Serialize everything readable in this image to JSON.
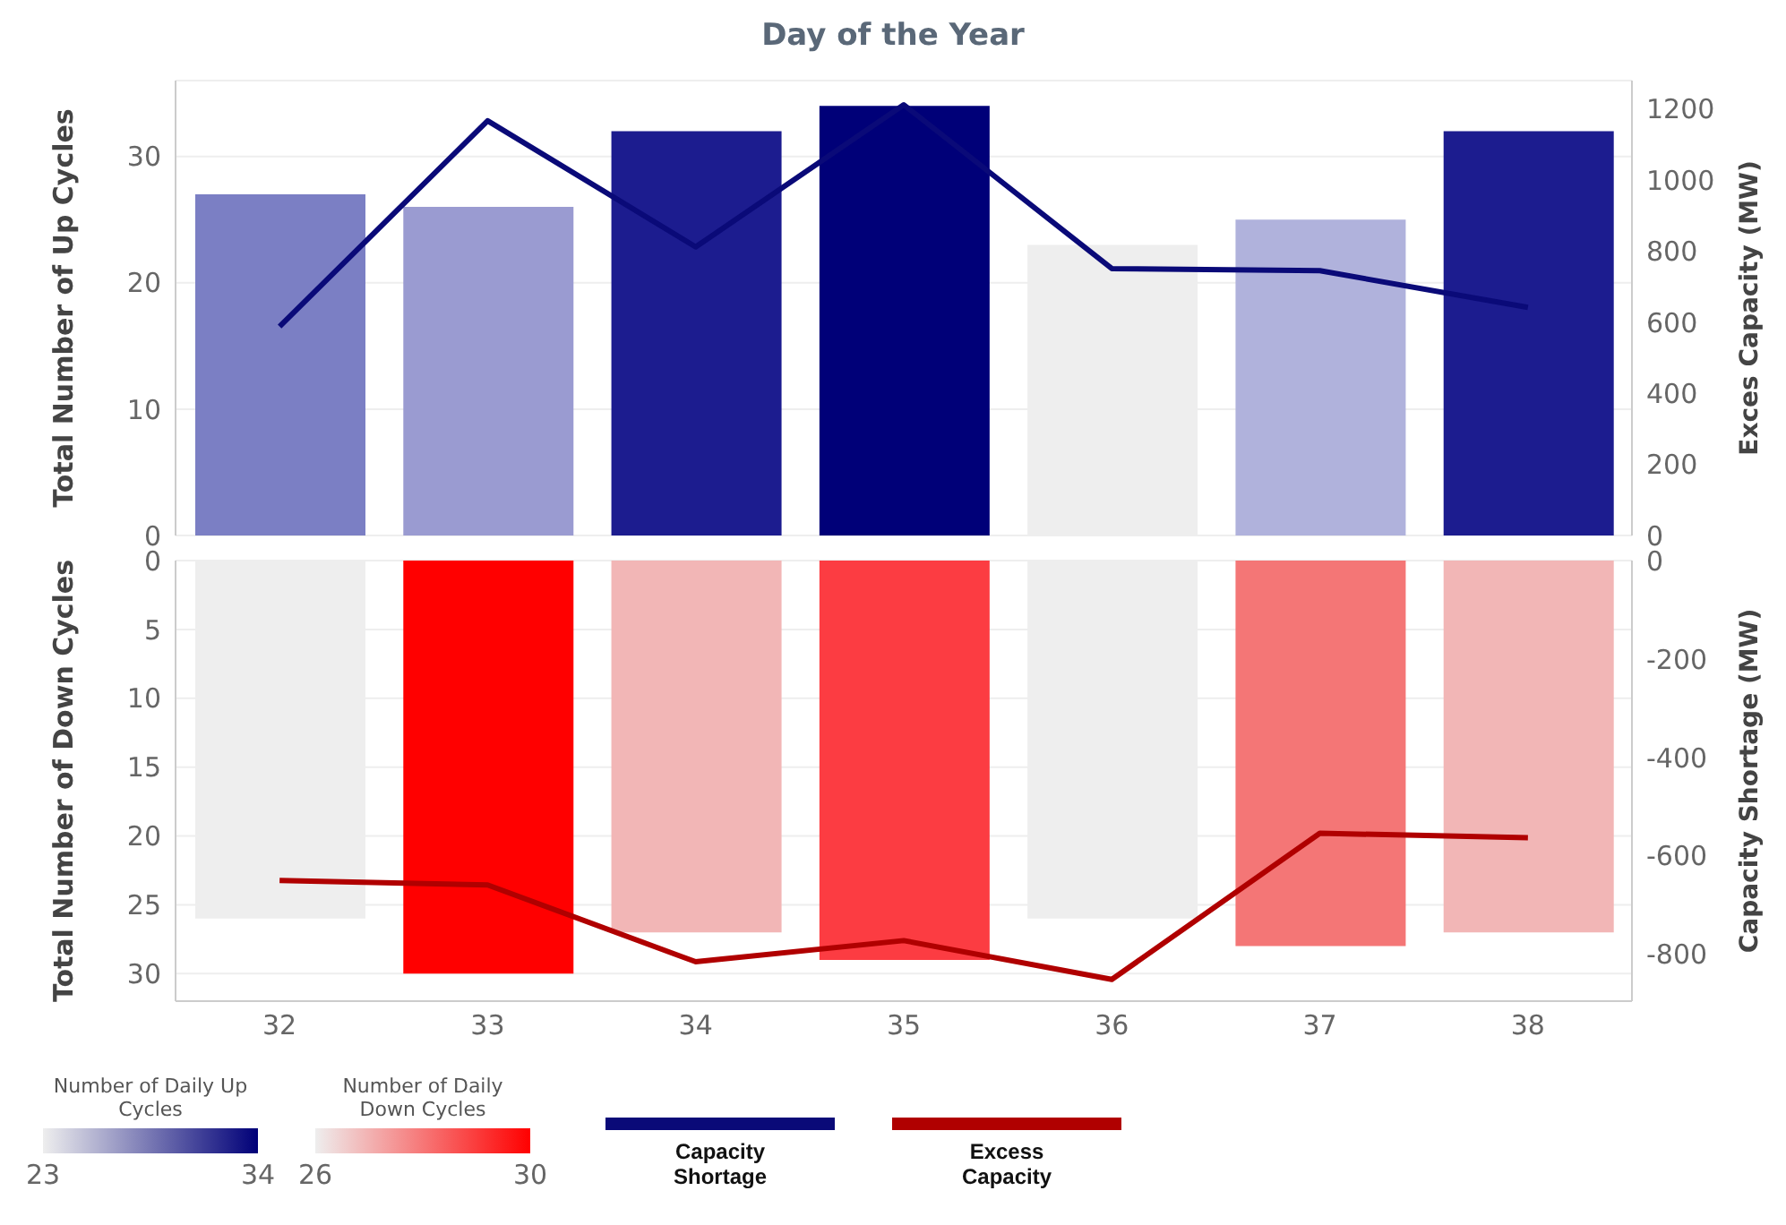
{
  "chart_data": [
    {
      "type": "bar",
      "title": "Day of the Year",
      "ylabel": "Total Number of Up Cycles",
      "y2label": "Exces Capacity (MW)",
      "categories": [
        "32",
        "33",
        "34",
        "35",
        "36",
        "37",
        "38"
      ],
      "tick_labels": "y",
      "grid": "y",
      "legend": "bottom",
      "clabel": "Number of Daily Up Cycles",
      "clim": [
        23,
        34
      ],
      "cticks": [
        23,
        34
      ],
      "ylim": [
        0,
        36
      ],
      "yticks": [
        0,
        10,
        20,
        30
      ],
      "y2lim": [
        0,
        1280
      ],
      "y2ticks": [
        0,
        200,
        400,
        600,
        800,
        1000,
        1200
      ],
      "series": [
        {
          "values": [
            27,
            26,
            32,
            34,
            23,
            25,
            32
          ],
          "colors": [
            "#7b7fc4",
            "#9a9bd1",
            "#1c1c8f",
            "#000078",
            "#eeeeee",
            "#b0b2dc",
            "#1c1c8f"
          ]
        },
        {
          "type": "line",
          "name": "Capacity Shortage",
          "color": "#0a0a78",
          "axis": "y2",
          "values": [
            588,
            1167,
            812,
            1212,
            751,
            745,
            642
          ]
        }
      ]
    },
    {
      "type": "bar",
      "ylabel": "Total Number of Down Cycles",
      "y2label": "Capacity Shortage (MW)",
      "categories": [
        "32",
        "33",
        "34",
        "35",
        "36",
        "37",
        "38"
      ],
      "grid": "y",
      "legend": "bottom",
      "clabel": "Number of Daily Down Cycles",
      "clim": [
        26,
        30
      ],
      "cticks": [
        26,
        30
      ],
      "ylim": [
        32,
        0
      ],
      "yticks": [
        0,
        5,
        10,
        15,
        20,
        25,
        30
      ],
      "y2lim": [
        -895,
        0
      ],
      "y2ticks": [
        -800,
        -600,
        -400,
        -200,
        0
      ],
      "series": [
        {
          "values": [
            26,
            30,
            27,
            29,
            26,
            28,
            27
          ],
          "colors": [
            "#eeeeee",
            "#ff0000",
            "#f2b6b6",
            "#fc3c42",
            "#eeeeee",
            "#f47676",
            "#f2b6b6"
          ]
        },
        {
          "type": "line",
          "name": "Excess Capacity",
          "color": "#b00000",
          "axis": "y2",
          "values": [
            -650,
            -659,
            -815,
            -772,
            -851,
            -554,
            -563
          ]
        }
      ]
    }
  ]
}
